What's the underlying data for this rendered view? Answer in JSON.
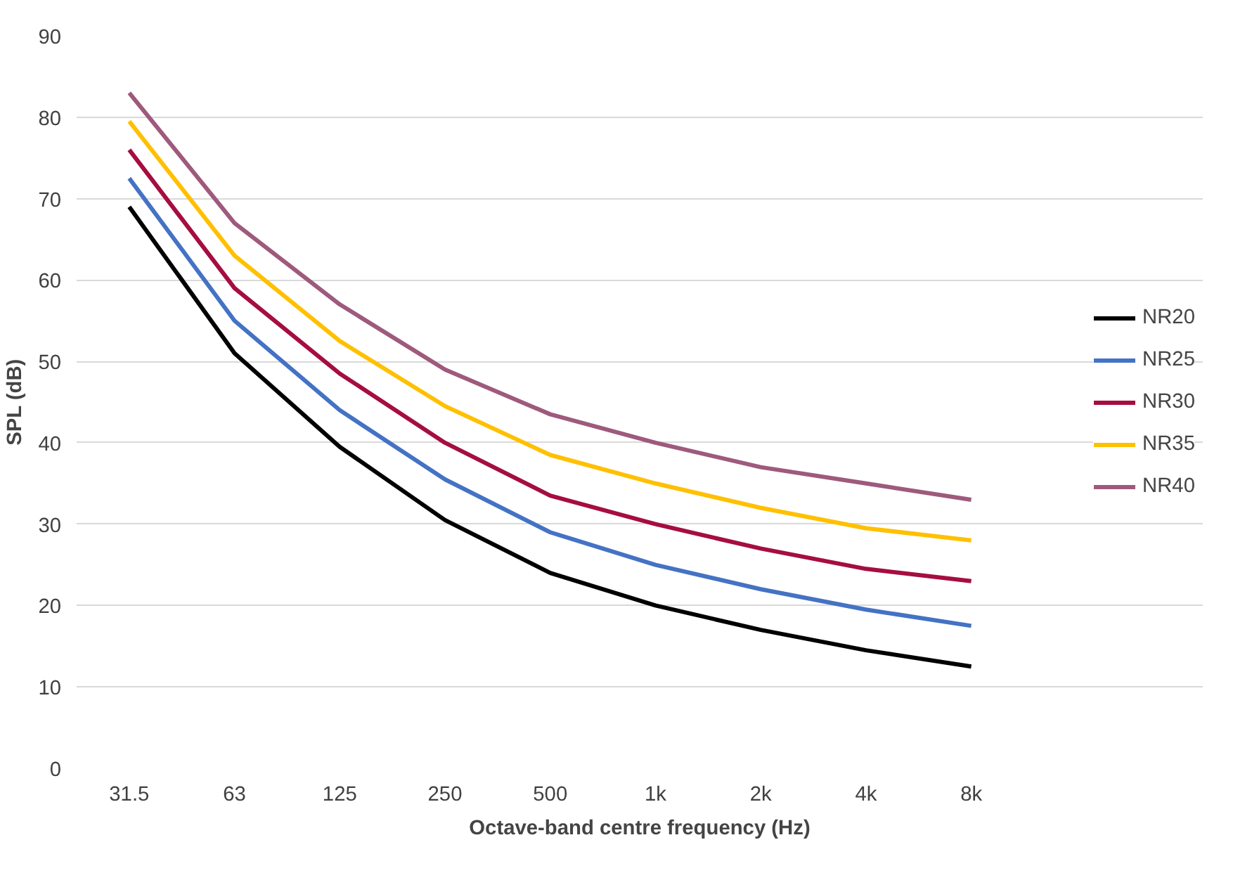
{
  "chart_data": {
    "type": "line",
    "xlabel": "Octave-band centre frequency (Hz)",
    "ylabel": "SPL (dB)",
    "categories": [
      "31.5",
      "63",
      "125",
      "250",
      "500",
      "1k",
      "2k",
      "4k",
      "8k"
    ],
    "ylim": [
      0,
      90
    ],
    "yticks": [
      0,
      10,
      20,
      30,
      40,
      50,
      60,
      70,
      80,
      90
    ],
    "grid": "y",
    "legend": "right",
    "line_style": "solid",
    "series": [
      {
        "name": "NR20",
        "color": "#000000",
        "values": [
          69,
          51,
          39.5,
          30.5,
          24,
          20,
          17,
          14.5,
          12.5
        ]
      },
      {
        "name": "NR25",
        "color": "#4472c4",
        "values": [
          72.5,
          55,
          44,
          35.5,
          29,
          25,
          22,
          19.5,
          17.5
        ]
      },
      {
        "name": "NR30",
        "color": "#a50e3f",
        "values": [
          76,
          59,
          48.5,
          40,
          33.5,
          30,
          27,
          24.5,
          23
        ]
      },
      {
        "name": "NR35",
        "color": "#ffc000",
        "values": [
          79.5,
          63,
          52.5,
          44.5,
          38.5,
          35,
          32,
          29.5,
          28
        ]
      },
      {
        "name": "NR40",
        "color": "#9e5a7c",
        "values": [
          83,
          67,
          57,
          49,
          43.5,
          40,
          37,
          35,
          33
        ]
      }
    ]
  }
}
